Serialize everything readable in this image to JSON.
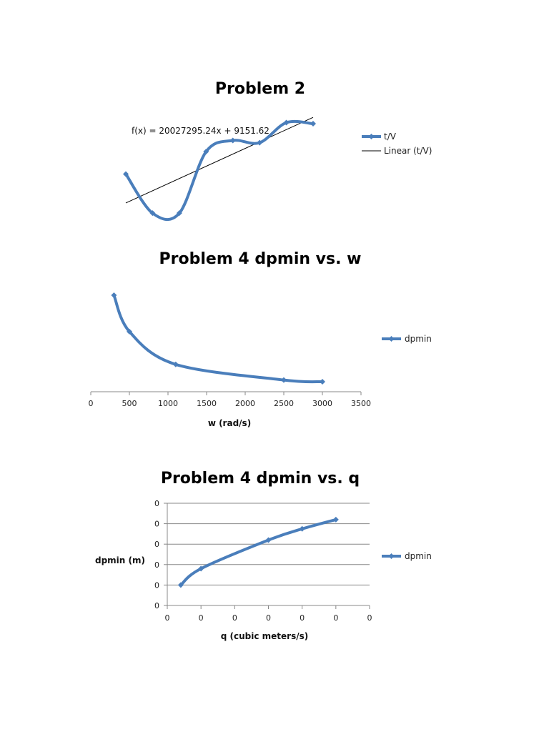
{
  "colors": {
    "series": "#4a7ebb",
    "trend": "#000000",
    "axis": "#888888",
    "grid": "#888888"
  },
  "chart_data": [
    {
      "type": "line",
      "title": "Problem 2",
      "xlabel": "",
      "ylabel": "",
      "smooth": true,
      "grid": false,
      "axes_visible": false,
      "legend_position": "right",
      "trendline": {
        "type": "linear",
        "equation": "f(x) = 20027295.24x + 9151.62",
        "legend": "Linear (t/V)"
      },
      "series": [
        {
          "name": "t/V",
          "marker": "diamond",
          "points": [
            [
              1,
              0.4
            ],
            [
              2,
              0.05
            ],
            [
              3,
              0.05
            ],
            [
              4,
              0.6
            ],
            [
              5,
              0.7
            ],
            [
              6,
              0.68
            ],
            [
              7,
              0.86
            ],
            [
              8,
              0.85
            ]
          ]
        }
      ]
    },
    {
      "type": "line",
      "title": "Problem 4 dpmin vs. w",
      "xlabel": "w (rad/s)",
      "ylabel": "",
      "xlim": [
        0,
        3500
      ],
      "xticks": [
        "0",
        "500",
        "1000",
        "1500",
        "2000",
        "2500",
        "3000",
        "3500"
      ],
      "grid": false,
      "legend_position": "right",
      "series": [
        {
          "name": "dpmin",
          "marker": "diamond",
          "points": [
            [
              300,
              1.0
            ],
            [
              500,
              0.58
            ],
            [
              1100,
              0.2
            ],
            [
              2500,
              0.02
            ],
            [
              3000,
              0.0
            ]
          ]
        }
      ]
    },
    {
      "type": "line",
      "title": "Problem 4 dpmin vs. q",
      "xlabel": "q (cubic meters/s)",
      "ylabel": "dpmin (m)",
      "xticks": [
        "0",
        "0",
        "0",
        "0",
        "0",
        "0",
        "0"
      ],
      "yticks": [
        "0",
        "0",
        "0",
        "0",
        "0",
        "0"
      ],
      "grid": true,
      "legend_position": "right",
      "series": [
        {
          "name": "dpmin",
          "marker": "diamond",
          "points": [
            [
              0.4,
              1.0
            ],
            [
              1.0,
              1.8
            ],
            [
              3.0,
              3.2
            ],
            [
              4.0,
              3.75
            ],
            [
              5.0,
              4.2
            ]
          ]
        }
      ]
    }
  ]
}
